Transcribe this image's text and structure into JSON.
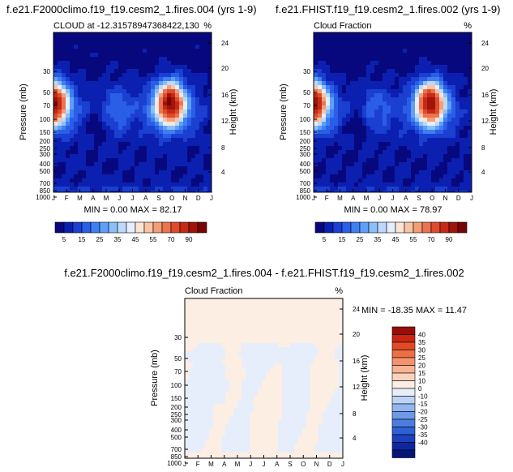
{
  "chart_data": [
    {
      "type": "heatmap",
      "id": "p1",
      "title": "f.e21.F2000climo.f19_f19.cesm2_1.fires.004 (yrs 1-9)",
      "left_label": "CLOUD at -12.31578947368422,130",
      "right_label": "%",
      "xlabel": "",
      "ylabel": "Pressure (mb)",
      "ylabel_right": "Height (km)",
      "x_ticks": [
        "J",
        "F",
        "M",
        "A",
        "M",
        "J",
        "J",
        "A",
        "S",
        "O",
        "N",
        "D",
        "J"
      ],
      "y_ticks": [
        "30",
        "50",
        "70",
        "100",
        "150",
        "200",
        "250",
        "300",
        "400",
        "500",
        "700",
        "850",
        "1000"
      ],
      "y_ticks_right": [
        "24",
        "20",
        "16",
        "12",
        "8",
        "4"
      ],
      "stats": "MIN =  0.00 MAX =  82.17",
      "min": 0.0,
      "max": 82.17
    },
    {
      "type": "heatmap",
      "id": "p2",
      "title": "f.e21.FHIST.f19_f19.cesm2_1.fires.002 (yrs 1-9)",
      "left_label": "Cloud Fraction",
      "right_label": "%",
      "xlabel": "",
      "ylabel": "Pressure (mb)",
      "ylabel_right": "Height (km)",
      "x_ticks": [
        "J",
        "F",
        "M",
        "A",
        "M",
        "J",
        "J",
        "A",
        "S",
        "O",
        "N",
        "D",
        "J"
      ],
      "y_ticks": [
        "30",
        "50",
        "70",
        "100",
        "150",
        "200",
        "250",
        "300",
        "400",
        "500",
        "700",
        "850",
        "1000"
      ],
      "y_ticks_right": [
        "24",
        "20",
        "16",
        "12",
        "8",
        "4"
      ],
      "stats": "MIN =  0.00 MAX =  78.97",
      "min": 0.0,
      "max": 78.97
    },
    {
      "type": "heatmap",
      "id": "p3",
      "title": "f.e21.F2000climo.f19_f19.cesm2_1.fires.004 - f.e21.FHIST.f19_f19.cesm2_1.fires.002",
      "left_label": "Cloud Fraction",
      "right_label": "%",
      "xlabel": "",
      "ylabel": "Pressure (mb)",
      "ylabel_right": "Height (km)",
      "x_ticks": [
        "J",
        "F",
        "M",
        "A",
        "M",
        "J",
        "J",
        "A",
        "S",
        "O",
        "N",
        "D",
        "J"
      ],
      "y_ticks": [
        "30",
        "50",
        "70",
        "100",
        "150",
        "200",
        "250",
        "300",
        "400",
        "500",
        "700",
        "850",
        "1000"
      ],
      "y_ticks_right": [
        "24",
        "20",
        "16",
        "12",
        "8",
        "4"
      ],
      "stats": "MIN = -18.35 MAX =  11.47",
      "min": -18.35,
      "max": 11.47
    }
  ],
  "colorbar_abs": {
    "labels": [
      "5",
      "15",
      "25",
      "35",
      "45",
      "55",
      "70",
      "90"
    ],
    "colors": [
      "#08087e",
      "#0b20b0",
      "#1a3fd1",
      "#2a5ee6",
      "#3f7ff2",
      "#5f9ff7",
      "#8cbff9",
      "#bcd9fb",
      "#e4eefc",
      "#fbe4d4",
      "#f8c4a6",
      "#f39e78",
      "#ea7450",
      "#de4b2c",
      "#c42a16",
      "#a0140a",
      "#760605"
    ]
  },
  "colorbar_diff": {
    "labels": [
      "40",
      "35",
      "30",
      "25",
      "20",
      "15",
      "10",
      "0",
      "-10",
      "-15",
      "-20",
      "-25",
      "-30",
      "-35",
      "-40"
    ],
    "colors": [
      "#9a0d07",
      "#cc2412",
      "#e24a26",
      "#ee6e45",
      "#f59270",
      "#f8b394",
      "#fbd3bd",
      "#fdeee3",
      "#e6eefb",
      "#bcd3f5",
      "#92b6ef",
      "#6d99e8",
      "#4b7de0",
      "#2f5fd4",
      "#1b41bd",
      "#0d289f",
      "#061678"
    ]
  }
}
